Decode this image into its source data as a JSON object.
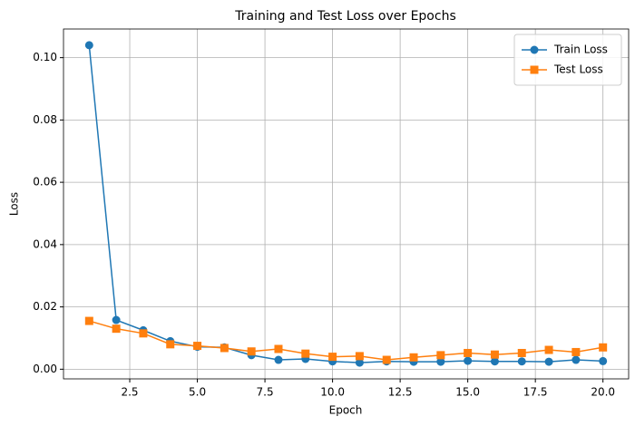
{
  "chart_data": {
    "type": "line",
    "title": "Training and Test Loss over Epochs",
    "xlabel": "Epoch",
    "ylabel": "Loss",
    "x": [
      1,
      2,
      3,
      4,
      5,
      6,
      7,
      8,
      9,
      10,
      11,
      12,
      13,
      14,
      15,
      16,
      17,
      18,
      19,
      20
    ],
    "series": [
      {
        "name": "Train Loss",
        "color": "#1f77b4",
        "marker": "circle",
        "values": [
          0.104,
          0.0158,
          0.0125,
          0.009,
          0.0072,
          0.007,
          0.0045,
          0.003,
          0.0033,
          0.0025,
          0.0021,
          0.0025,
          0.0024,
          0.0024,
          0.0027,
          0.0025,
          0.0025,
          0.0024,
          0.003,
          0.0026
        ]
      },
      {
        "name": "Test Loss",
        "color": "#ff7f0e",
        "marker": "square",
        "values": [
          0.0155,
          0.013,
          0.0115,
          0.008,
          0.0075,
          0.0068,
          0.0057,
          0.0065,
          0.005,
          0.004,
          0.0042,
          0.003,
          0.0038,
          0.0045,
          0.0052,
          0.0047,
          0.0052,
          0.0062,
          0.0055,
          0.007
        ]
      }
    ],
    "xlim": [
      0.05,
      20.95
    ],
    "xticks": [
      2.5,
      {
        "value": 5,
        "label": "5.0"
      },
      7.5,
      {
        "value": 10,
        "label": "10.0"
      },
      12.5,
      {
        "value": 15,
        "label": "15.0"
      },
      17.5,
      {
        "value": 20,
        "label": "20.0"
      }
    ],
    "ylim": [
      -0.0031,
      0.1092
    ],
    "yticks": [
      {
        "value": 0,
        "label": "0.00"
      },
      {
        "value": 0.02,
        "label": "0.02"
      },
      {
        "value": 0.04,
        "label": "0.04"
      },
      {
        "value": 0.06,
        "label": "0.06"
      },
      {
        "value": 0.08,
        "label": "0.08"
      },
      {
        "value": 0.1,
        "label": "0.10"
      }
    ],
    "grid": true,
    "legend": "upper right"
  }
}
